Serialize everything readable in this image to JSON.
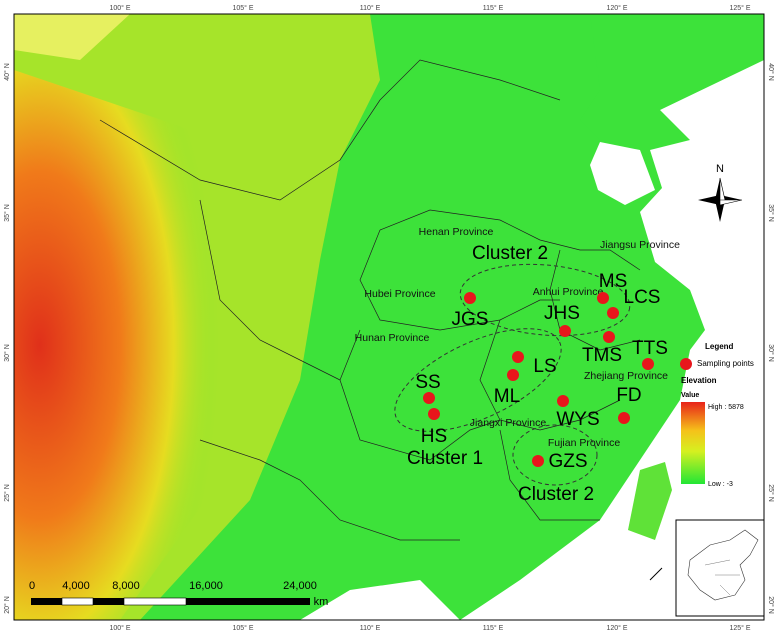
{
  "lon_labels": [
    "100° E",
    "105° E",
    "110° E",
    "115° E",
    "120° E",
    "125° E"
  ],
  "lat_labels": [
    "40° N",
    "35° N",
    "30° N",
    "25° N",
    "20° N"
  ],
  "provinces": [
    "Henan Province",
    "Jiangsu Province",
    "Hubei Province",
    "Anhui Province",
    "Hunan Province",
    "Zhejiang Province",
    "Jiangxi Province",
    "Fujian Province"
  ],
  "sites": [
    "MS",
    "LCS",
    "JHS",
    "JGS",
    "TMS",
    "TTS",
    "LS",
    "ML",
    "SS",
    "HS",
    "FD",
    "WYS",
    "GZS"
  ],
  "clusters": [
    "Cluster 2",
    "Cluster 1",
    "Cluster 2"
  ],
  "legend": {
    "title": "Legend",
    "points": "Sampling points",
    "elevation": "Elevation",
    "value": "Value",
    "high": "High : 5878",
    "low": "Low : -3"
  },
  "north": "N",
  "scale": {
    "labels": [
      "0",
      "4,000",
      "8,000",
      "16,000",
      "24,000"
    ],
    "unit": "km"
  }
}
